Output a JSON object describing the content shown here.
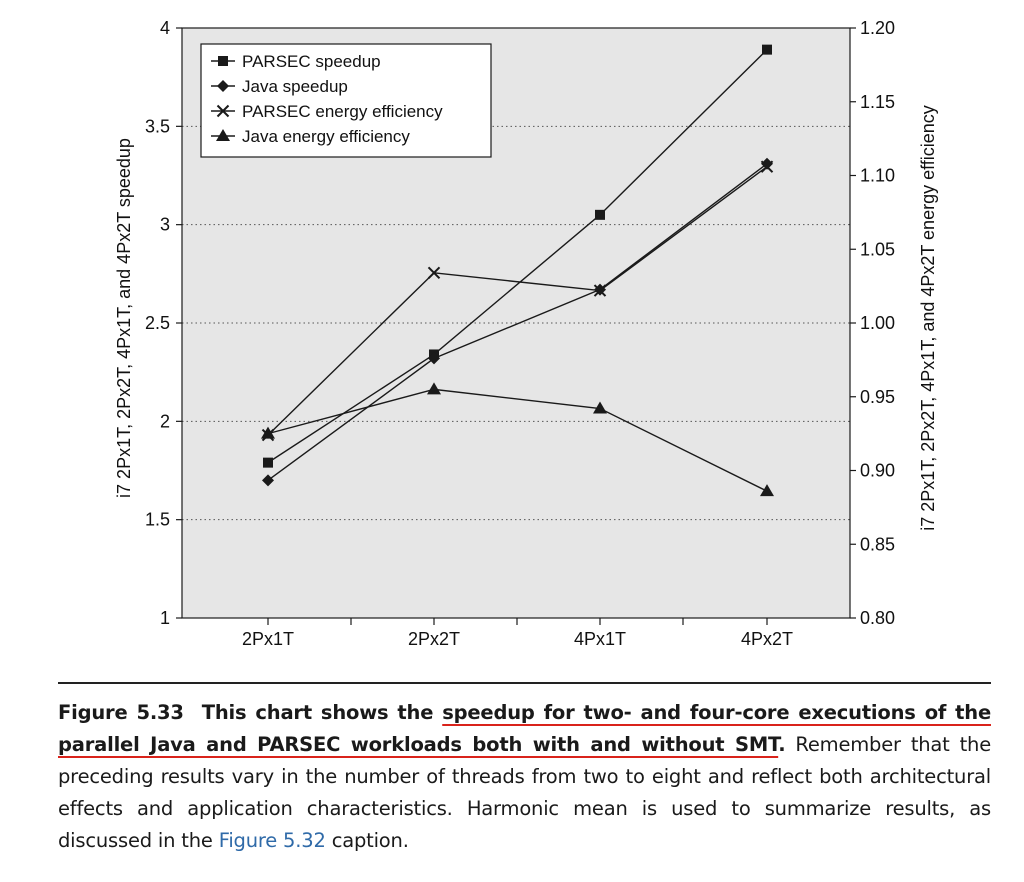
{
  "chart_data": {
    "type": "line",
    "categories": [
      "2Px1T",
      "2Px2T",
      "4Px1T",
      "4Px2T"
    ],
    "ylabel": "i7 2Px1T, 2Px2T, 4Px1T, and 4Px2T speedup",
    "y2label": "i7 2Px1T, 2Px2T, 4Px1T, and 4Px2T energy efficiency",
    "ylim": [
      1,
      4
    ],
    "y2lim": [
      0.8,
      1.2
    ],
    "yticks": [
      "1",
      "1.5",
      "2",
      "2.5",
      "3",
      "3.5",
      "4"
    ],
    "y2ticks": [
      "0.80",
      "0.85",
      "0.90",
      "0.95",
      "1.00",
      "1.05",
      "1.10",
      "1.15",
      "1.20"
    ],
    "grid": "horizontal dotted",
    "legend_position": "top-left",
    "series": [
      {
        "name": "PARSEC speedup",
        "axis": "left",
        "marker": "square",
        "values": [
          1.79,
          2.34,
          3.05,
          3.89
        ]
      },
      {
        "name": "Java speedup",
        "axis": "left",
        "marker": "diamond",
        "values": [
          1.7,
          2.32,
          2.67,
          3.31
        ]
      },
      {
        "name": "PARSEC energy efficiency",
        "axis": "right",
        "marker": "x",
        "values": [
          0.924,
          1.034,
          1.022,
          1.106
        ]
      },
      {
        "name": "Java energy efficiency",
        "axis": "right",
        "marker": "triangle",
        "values": [
          0.925,
          0.955,
          0.942,
          0.886
        ]
      }
    ],
    "colors": {
      "plot_background": "#e6e6e6",
      "line": "#1a1a1a"
    }
  },
  "caption": {
    "label": "Figure 5.33",
    "bold_lead": "This chart shows the",
    "bold_highlight": "speedup for two- and four-core executions of the parallel Java and PARSEC workloads both with and without SMT",
    "bold_end": ".",
    "rest": "Remember that the preceding results vary in the number of threads from two to eight and reflect both architectural effects and application characteristics. Harmonic mean is used to summarize results, as discussed in the",
    "link": "Figure 5.32",
    "tail": "caption."
  }
}
